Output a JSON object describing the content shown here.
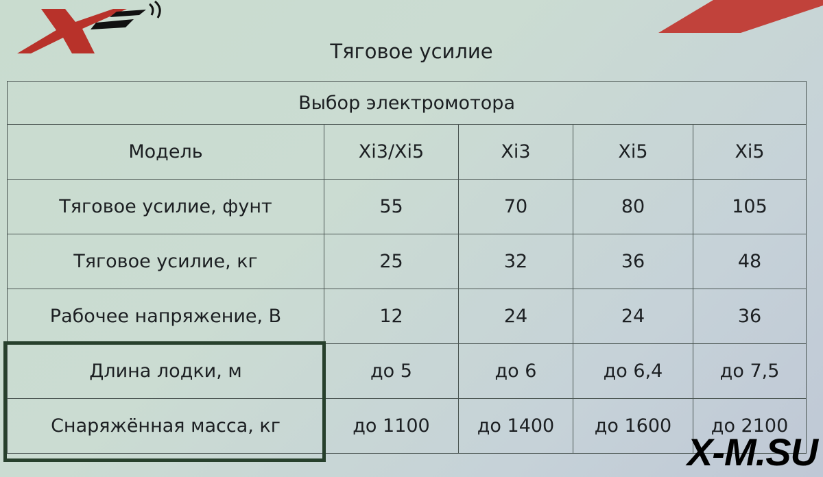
{
  "logo": {
    "text": "X",
    "icon": "x-logo-wireless-icon",
    "color": "#b8322a"
  },
  "watermark": "X-M.SU",
  "title": "Тяговое усилие",
  "table": {
    "header": "Выбор электромотора",
    "rows": [
      {
        "label": "Модель",
        "values": [
          "Xi3/Xi5",
          "Xi3",
          "Xi5",
          "Xi5"
        ]
      },
      {
        "label": "Тяговое усилие, фунт",
        "values": [
          "55",
          "70",
          "80",
          "105"
        ]
      },
      {
        "label": "Тяговое усилие, кг",
        "values": [
          "25",
          "32",
          "36",
          "48"
        ]
      },
      {
        "label": "Рабочее напряжение, В",
        "values": [
          "12",
          "24",
          "24",
          "36"
        ]
      },
      {
        "label": "Длина лодки, м",
        "values": [
          "до 5",
          "до 6",
          "до 6,4",
          "до 7,5"
        ]
      },
      {
        "label": "Снаряжённая масса, кг",
        "values": [
          "до 1100",
          "до 1400",
          "до 1600",
          "до 2100"
        ]
      }
    ]
  },
  "colors": {
    "accent": "#b8322a",
    "highlight_border": "#27402c"
  }
}
